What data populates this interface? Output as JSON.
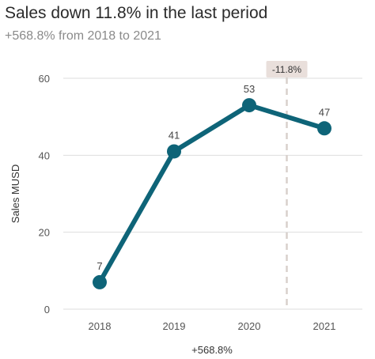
{
  "chart_data": {
    "type": "line",
    "title": "Sales down 11.8% in the last period",
    "subtitle": "+568.8% from 2018 to 2021",
    "categories": [
      "2018",
      "2019",
      "2020",
      "2021"
    ],
    "series": [
      {
        "values": [
          7,
          41,
          53,
          47
        ]
      }
    ],
    "data_labels": [
      "7",
      "41",
      "53",
      "47"
    ],
    "ylabel": "Sales MUSD",
    "xlabel": "+568.8%",
    "ylim": [
      0,
      60
    ],
    "yticks": [
      "0",
      "20",
      "40",
      "60"
    ],
    "grid": "horizontal",
    "annotation": {
      "label": "-11.8%",
      "between": [
        "2020",
        "2021"
      ]
    },
    "colors": {
      "line": "#0e6478",
      "grid": "#dedede",
      "annotation_bg": "#e9dfdb",
      "annotation_line": "#d8d0cc"
    }
  }
}
